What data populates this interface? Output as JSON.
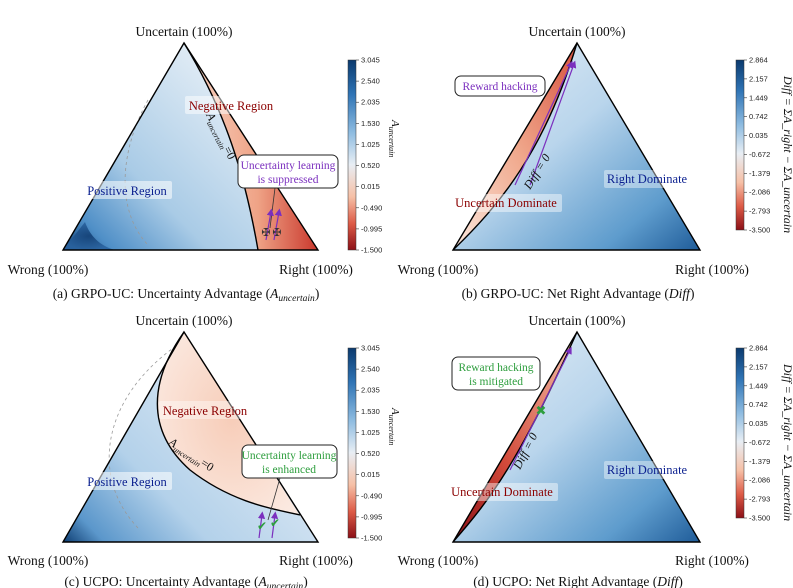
{
  "chart_data": [
    {
      "id": "a",
      "type": "heatmap",
      "subplot": "ternary",
      "caption_prefix": "(a) GRPO-UC: Uncertainty Advantage (",
      "caption_var": "A",
      "caption_sub": "uncertain",
      "caption_suffix": ")",
      "vertex_top": "Uncertain (100%)",
      "vertex_left": "Wrong (100%)",
      "vertex_right": "Right (100%)",
      "colorbar_label_main": "A",
      "colorbar_label_sub": "uncertain",
      "colorbar_ticks": [
        "3.045",
        "2.540",
        "2.035",
        "1.530",
        "1.025",
        "0.520",
        "0.015",
        "-0.490",
        "-0.995",
        "-1.500"
      ],
      "colorbar_range": [
        -1.5,
        3.045
      ],
      "region_labels": [
        {
          "text": "Negative Region",
          "color": "#8b0000",
          "where": "right-edge upper"
        },
        {
          "text": "Positive Region",
          "color": "#0a1f8f",
          "where": "left interior"
        }
      ],
      "contour_label_main": "A",
      "contour_label_sub": "uncertain",
      "contour_label_tail": "=0",
      "callout_lines": [
        "Uncertainty learning",
        "is suppressed"
      ],
      "callout_color": "#7b2fbe",
      "markers": "cross"
    },
    {
      "id": "b",
      "type": "heatmap",
      "subplot": "ternary",
      "caption_prefix": "(b) GRPO-UC: Net Right Advantage (",
      "caption_var": "Diff",
      "caption_sub": "",
      "caption_suffix": ")",
      "vertex_top": "Uncertain (100%)",
      "vertex_left": "Wrong (100%)",
      "vertex_right": "Right (100%)",
      "colorbar_label": "Diff = ΣA_right − ΣA_uncertain",
      "colorbar_ticks": [
        "2.864",
        "2.157",
        "1.449",
        "0.742",
        "0.035",
        "-0.672",
        "-1.379",
        "-2.086",
        "-2.793",
        "-3.500"
      ],
      "colorbar_range": [
        -3.5,
        2.864
      ],
      "region_labels": [
        {
          "text": "Uncertain Dominate",
          "color": "#8b0000",
          "where": "left-edge"
        },
        {
          "text": "Right Dominate",
          "color": "#0a1f8f",
          "where": "right interior"
        }
      ],
      "contour_label": "Diff = 0",
      "callout_lines": [
        "Reward hacking"
      ],
      "callout_color": "#7b2fbe"
    },
    {
      "id": "c",
      "type": "heatmap",
      "subplot": "ternary",
      "caption_prefix": "(c) UCPO: Uncertainty Advantage (",
      "caption_var": "A",
      "caption_sub": "uncertain",
      "caption_suffix": ")",
      "vertex_top": "Uncertain (100%)",
      "vertex_left": "Wrong (100%)",
      "vertex_right": "Right (100%)",
      "colorbar_label_main": "A",
      "colorbar_label_sub": "uncertain",
      "colorbar_ticks": [
        "3.045",
        "2.540",
        "2.035",
        "1.530",
        "1.025",
        "0.520",
        "0.015",
        "-0.490",
        "-0.995",
        "-1.500"
      ],
      "colorbar_range": [
        -1.5,
        3.045
      ],
      "region_labels": [
        {
          "text": "Negative Region",
          "color": "#8b0000",
          "where": "upper interior"
        },
        {
          "text": "Positive Region",
          "color": "#0a1f8f",
          "where": "left interior"
        }
      ],
      "contour_label_main": "A",
      "contour_label_sub": "uncertain",
      "contour_label_tail": "=0",
      "callout_lines": [
        "Uncertainty learning",
        "is enhanced"
      ],
      "callout_color": "#2e9e3e",
      "markers": "check"
    },
    {
      "id": "d",
      "type": "heatmap",
      "subplot": "ternary",
      "caption_prefix": "(d) UCPO: Net Right Advantage (",
      "caption_var": "Diff",
      "caption_sub": "",
      "caption_suffix": ")",
      "vertex_top": "Uncertain (100%)",
      "vertex_left": "Wrong (100%)",
      "vertex_right": "Right (100%)",
      "colorbar_label": "Diff = ΣA_right − ΣA_uncertain",
      "colorbar_ticks": [
        "2.864",
        "2.157",
        "1.449",
        "0.742",
        "0.035",
        "-0.672",
        "-1.379",
        "-2.086",
        "-2.793",
        "-3.500"
      ],
      "colorbar_range": [
        -3.5,
        2.864
      ],
      "region_labels": [
        {
          "text": "Uncertain Dominate",
          "color": "#8b0000",
          "where": "left-edge"
        },
        {
          "text": "Right Dominate",
          "color": "#0a1f8f",
          "where": "right interior"
        }
      ],
      "contour_label": "Diff = 0",
      "callout_lines": [
        "Reward hacking",
        "is mitigated"
      ],
      "callout_color": "#2e9e3e"
    }
  ],
  "colors": {
    "deep_blue": "#0b3a6e",
    "mid_blue": "#4a90c8",
    "light_blue": "#c6dcef",
    "white": "#f4f6f8",
    "light_red": "#f7c7b2",
    "mid_red": "#e36d55",
    "deep_red": "#8c1017",
    "purple": "#7b2fbe",
    "green": "#2e9e3e",
    "region_red": "#8b0000",
    "region_blue": "#0a1f8f"
  }
}
